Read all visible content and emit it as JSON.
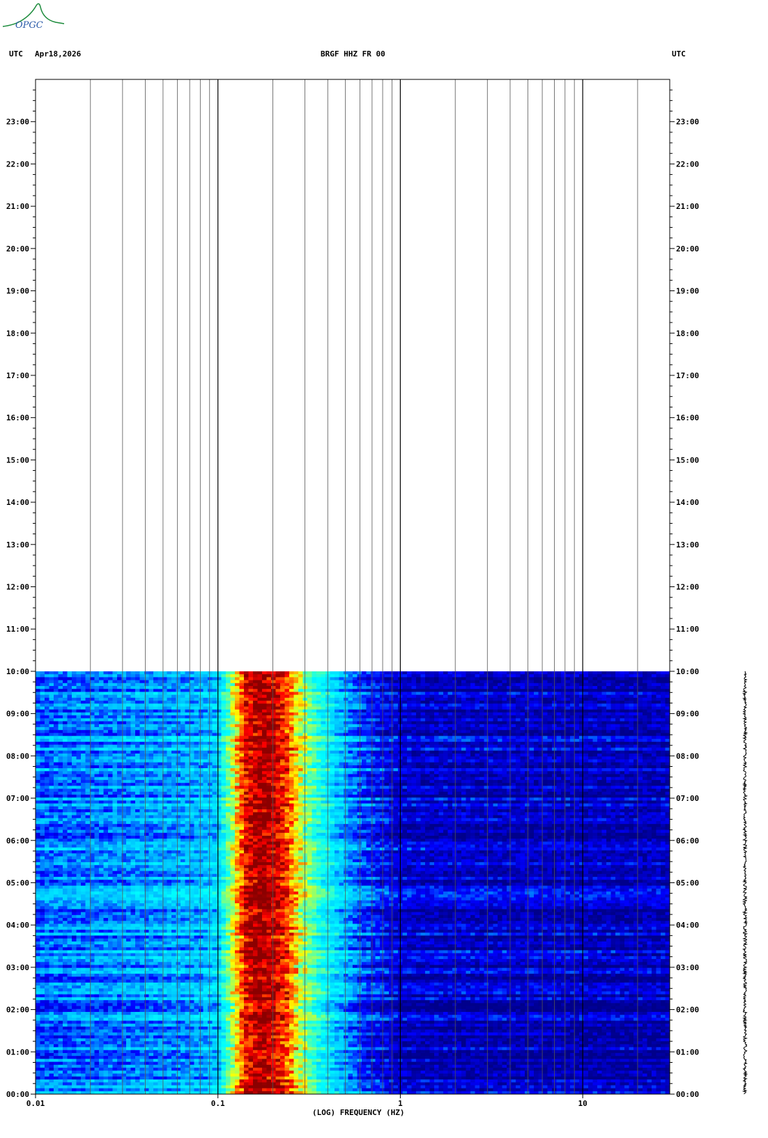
{
  "header": {
    "logo_text": "OPGC",
    "left_tz": "UTC",
    "date": "Apr18,2026",
    "station": "BRGF HHZ FR 00",
    "right_tz": "UTC"
  },
  "chart_data": {
    "type": "heatmap",
    "title": "BRGF HHZ FR 00",
    "xlabel": "(LOG) FREQUENCY (HZ)",
    "ylabel": "UTC",
    "x_scale": "log",
    "xlim": [
      0.01,
      30
    ],
    "x_tick_labels": [
      "0.01",
      "0.1",
      "1",
      "10"
    ],
    "x_tick_values": [
      0.01,
      0.1,
      1,
      10
    ],
    "y_tick_labels": [
      "00:00",
      "01:00",
      "02:00",
      "03:00",
      "04:00",
      "05:00",
      "06:00",
      "07:00",
      "08:00",
      "09:00",
      "10:00",
      "11:00",
      "12:00",
      "13:00",
      "14:00",
      "15:00",
      "16:00",
      "17:00",
      "18:00",
      "19:00",
      "20:00",
      "21:00",
      "22:00",
      "23:00"
    ],
    "ylim_hours": [
      0,
      24
    ],
    "data_end_hour": 10,
    "colormap": [
      "#00008b",
      "#0000ff",
      "#00bfff",
      "#00ffff",
      "#7fff7f",
      "#ffff00",
      "#ff8000",
      "#ff0000",
      "#8b0000"
    ],
    "spectral_profile": [
      {
        "freq": 0.01,
        "level": 0.2
      },
      {
        "freq": 0.025,
        "level": 0.22
      },
      {
        "freq": 0.08,
        "level": 0.26
      },
      {
        "freq": 0.1,
        "level": 0.3
      },
      {
        "freq": 0.12,
        "level": 0.55
      },
      {
        "freq": 0.14,
        "level": 0.88
      },
      {
        "freq": 0.17,
        "level": 1.0
      },
      {
        "freq": 0.2,
        "level": 0.95
      },
      {
        "freq": 0.24,
        "level": 0.82
      },
      {
        "freq": 0.28,
        "level": 0.6
      },
      {
        "freq": 0.35,
        "level": 0.42
      },
      {
        "freq": 0.45,
        "level": 0.3
      },
      {
        "freq": 0.6,
        "level": 0.18
      },
      {
        "freq": 1.0,
        "level": 0.08
      },
      {
        "freq": 30,
        "level": 0.06
      }
    ]
  }
}
